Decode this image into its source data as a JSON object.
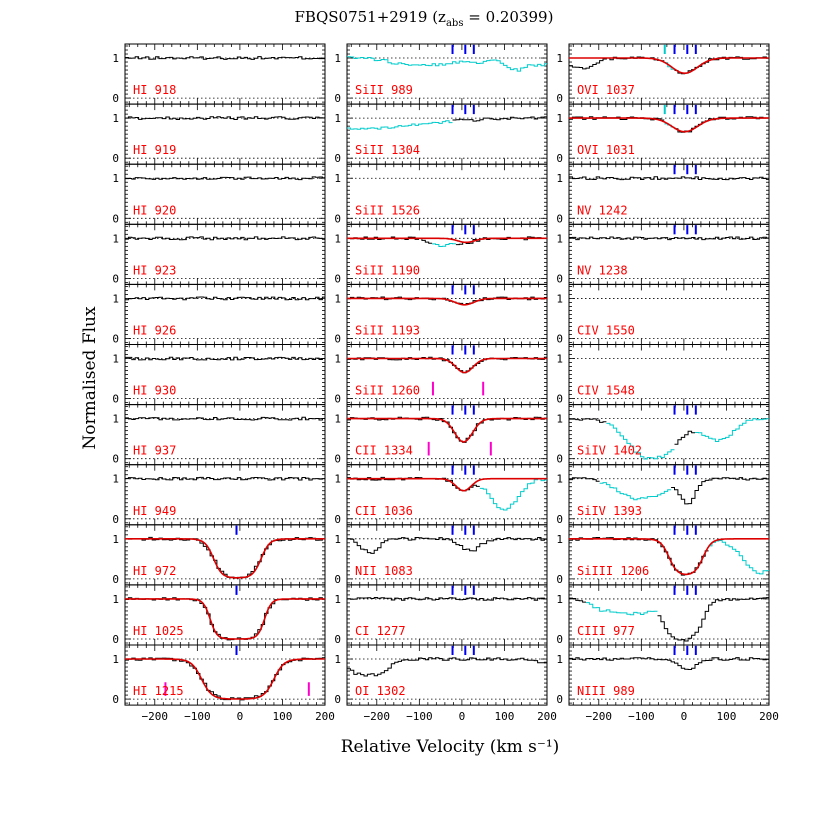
{
  "chart_data": {
    "type": "line",
    "title_main": "FBQS0751+2919 (z",
    "title_sub": "abs",
    "title_tail": " = 0.20399)",
    "xlabel": "Relative Velocity (km s⁻¹)",
    "ylabel": "Normalised Flux",
    "xlim": [
      -270,
      200
    ],
    "ylim": [
      -0.15,
      1.35
    ],
    "x_ticks": [
      "−200",
      "−100",
      "0",
      "100",
      "200"
    ],
    "y_ticks": [
      "0",
      "1"
    ],
    "component_velocities": [
      -22,
      8,
      28
    ],
    "colors": {
      "data": "#000000",
      "fit": "#dd0000",
      "blend": "#00cccc",
      "component": "#0000ee",
      "marker": "#ff00cc",
      "label": "#ff0000"
    },
    "panels": [
      {
        "label": "HI 918",
        "column": 0,
        "row": 0,
        "model": "flat"
      },
      {
        "label": "HI 919",
        "column": 0,
        "row": 1,
        "model": "flat"
      },
      {
        "label": "HI 920",
        "column": 0,
        "row": 2,
        "model": "flat"
      },
      {
        "label": "HI 923",
        "column": 0,
        "row": 3,
        "model": "flat"
      },
      {
        "label": "HI 926",
        "column": 0,
        "row": 4,
        "model": "flat"
      },
      {
        "label": "HI 930",
        "column": 0,
        "row": 5,
        "model": "flat"
      },
      {
        "label": "HI 937",
        "column": 0,
        "row": 6,
        "model": "flat"
      },
      {
        "label": "HI 949",
        "column": 0,
        "row": 7,
        "model": "flat"
      },
      {
        "label": "HI 972",
        "column": 0,
        "row": 8,
        "model": "trough",
        "v1": -62,
        "v2": 50,
        "w": 12,
        "depth": 0.98,
        "fit": true,
        "ticks": [
          -8
        ]
      },
      {
        "label": "HI 1025",
        "column": 0,
        "row": 9,
        "model": "trough",
        "v1": -70,
        "v2": 58,
        "w": 9,
        "depth": 1.0,
        "fit": true,
        "ticks": [
          -8
        ]
      },
      {
        "label": "HI 1215",
        "column": 0,
        "row": 10,
        "model": "trough",
        "v1": -90,
        "v2": 80,
        "w": 14,
        "depth": 1.0,
        "fit": true,
        "ticks": [
          -8
        ],
        "markers": [
          -175,
          162
        ]
      },
      {
        "label": "SiII 989",
        "column": 1,
        "row": 0,
        "model": "blend989",
        "ticks": [
          -22,
          8,
          28
        ]
      },
      {
        "label": "SiII 1304",
        "column": 1,
        "row": 1,
        "model": "blend1304",
        "ticks": [
          -22,
          8,
          28
        ]
      },
      {
        "label": "SiII 1526",
        "column": 1,
        "row": 2,
        "model": "empty"
      },
      {
        "label": "SiII 1190",
        "column": 1,
        "row": 3,
        "model": "blend1190",
        "fit": true,
        "ticks": [
          -22,
          8,
          28
        ]
      },
      {
        "label": "SiII 1193",
        "column": 1,
        "row": 4,
        "model": "gauss",
        "c": 6,
        "sig": 22,
        "depth": 0.16,
        "fit": true,
        "ticks": [
          -22,
          8,
          28
        ]
      },
      {
        "label": "SiII 1260",
        "column": 1,
        "row": 5,
        "model": "gauss",
        "c": 6,
        "sig": 20,
        "depth": 0.35,
        "fit": true,
        "ticks": [
          -22,
          8,
          28
        ],
        "markers": [
          -68,
          50
        ]
      },
      {
        "label": "CII 1334",
        "column": 1,
        "row": 6,
        "model": "gauss",
        "c": 4,
        "sig": 21,
        "depth": 0.58,
        "fit": true,
        "ticks": [
          -22,
          8,
          28
        ],
        "markers": [
          -78,
          68
        ]
      },
      {
        "label": "CII 1036",
        "column": 1,
        "row": 7,
        "model": "blend1036",
        "fit": true,
        "ticks": [
          -22,
          8,
          28
        ]
      },
      {
        "label": "NII 1083",
        "column": 1,
        "row": 8,
        "model": "nii",
        "ticks": [
          -22,
          8,
          28
        ]
      },
      {
        "label": "CI 1277",
        "column": 1,
        "row": 9,
        "model": "flat",
        "ticks": [
          -22,
          8,
          28
        ]
      },
      {
        "label": "OI 1302",
        "column": 1,
        "row": 10,
        "model": "oi",
        "ticks": [
          -22,
          8,
          28
        ]
      },
      {
        "label": "OVI 1037",
        "column": 2,
        "row": 0,
        "model": "ovi1037",
        "fit": true,
        "ticks": [
          -22,
          8,
          28
        ],
        "cyanTicks": [
          -45
        ]
      },
      {
        "label": "OVI 1031",
        "column": 2,
        "row": 1,
        "model": "gauss",
        "c": 2,
        "sig": 30,
        "depth": 0.34,
        "fit": true,
        "ticks": [
          -22,
          8,
          28
        ],
        "cyanTicks": [
          -45
        ]
      },
      {
        "label": "NV 1242",
        "column": 2,
        "row": 2,
        "model": "flat",
        "ticks": [
          -22,
          8,
          28
        ]
      },
      {
        "label": "NV 1238",
        "column": 2,
        "row": 3,
        "model": "flat",
        "ticks": [
          -22,
          8,
          28
        ]
      },
      {
        "label": "CIV 1550",
        "column": 2,
        "row": 4,
        "model": "empty"
      },
      {
        "label": "CIV 1548",
        "column": 2,
        "row": 5,
        "model": "empty"
      },
      {
        "label": "SiIV 1402",
        "column": 2,
        "row": 6,
        "model": "siiv1402",
        "ticks": [
          -22,
          8,
          28
        ]
      },
      {
        "label": "SiIV 1393",
        "column": 2,
        "row": 7,
        "model": "siiv1393",
        "ticks": [
          -22,
          8,
          28
        ]
      },
      {
        "label": "SiIII 1206",
        "column": 2,
        "row": 8,
        "model": "siiii",
        "fit": true,
        "ticks": [
          -22,
          8,
          28
        ]
      },
      {
        "label": "CIII 977",
        "column": 2,
        "row": 9,
        "model": "ciii",
        "ticks": [
          -22,
          8,
          28
        ]
      },
      {
        "label": "NIII 989",
        "column": 2,
        "row": 10,
        "model": "gauss",
        "c": 10,
        "sig": 18,
        "depth": 0.28,
        "ticks": [
          -22,
          8,
          28
        ]
      }
    ]
  }
}
